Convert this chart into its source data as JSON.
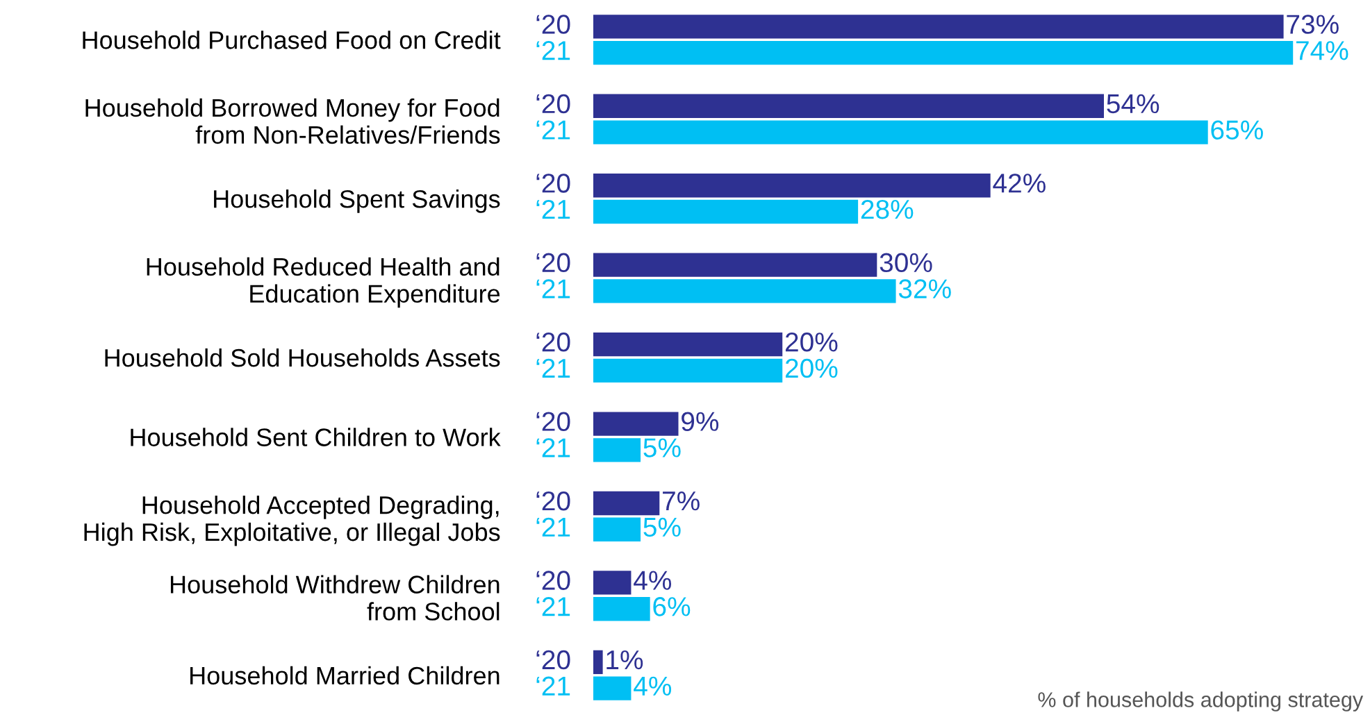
{
  "chart_data": {
    "type": "bar",
    "orientation": "horizontal",
    "categories": [
      "Household Purchased Food on Credit",
      "Household Borrowed Money for Food\nfrom Non-Relatives/Friends",
      "Household Spent Savings",
      "Household Reduced Health and\nEducation Expenditure",
      "Household Sold Households Assets",
      "Household Sent Children to Work",
      "Household Accepted Degrading,\nHigh Risk, Exploitative, or Illegal Jobs",
      "Household Withdrew Children\nfrom School",
      "Household Married Children"
    ],
    "series": [
      {
        "name": "‘20",
        "color": "#2e3192",
        "values": [
          73,
          54,
          42,
          30,
          20,
          9,
          7,
          4,
          1
        ],
        "value_labels": [
          "73%",
          "54%",
          "42%",
          "30%",
          "20%",
          "9%",
          "7%",
          "4%",
          "1%"
        ]
      },
      {
        "name": "‘21",
        "color": "#00bff3",
        "values": [
          74,
          65,
          28,
          32,
          20,
          5,
          5,
          6,
          4
        ],
        "value_labels": [
          "74%",
          "65%",
          "28%",
          "32%",
          "20%",
          "5%",
          "5%",
          "6%",
          "4%"
        ]
      }
    ],
    "annotations": [
      "% of households adopting strategy"
    ],
    "grid": false,
    "legend": false
  }
}
